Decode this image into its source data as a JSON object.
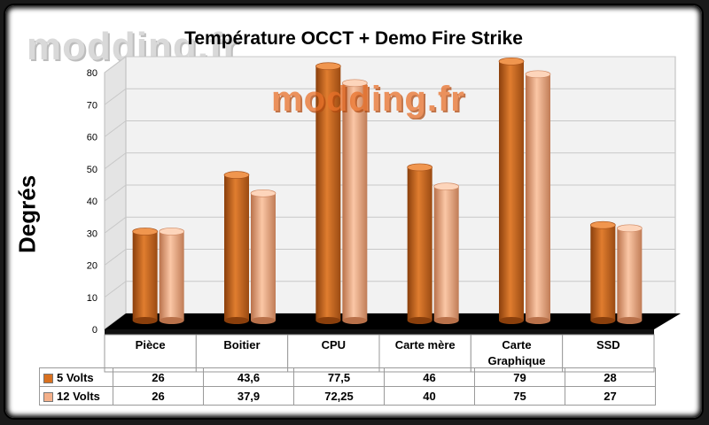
{
  "chart_data": {
    "type": "bar",
    "title": "Température OCCT + Demo Fire Strike",
    "ylabel": "Degrés",
    "xlabel": "",
    "categories": [
      "Pièce",
      "Boitier",
      "CPU",
      "Carte mère",
      "Carte\nGraphique",
      "SSD"
    ],
    "series": [
      {
        "name": "5 Volts",
        "color": "#d9701f",
        "values": [
          26,
          43.6,
          77.5,
          46,
          79,
          28
        ],
        "labels": [
          "26",
          "43,6",
          "77,5",
          "46",
          "79",
          "28"
        ]
      },
      {
        "name": "12 Volts",
        "color": "#f4b08a",
        "values": [
          26,
          37.9,
          72.25,
          40,
          75,
          27
        ],
        "labels": [
          "26",
          "37,9",
          "72,25",
          "40",
          "75",
          "27"
        ]
      }
    ],
    "ylim": [
      0,
      80
    ],
    "yticks": [
      0,
      10,
      20,
      30,
      40,
      50,
      60,
      70,
      80
    ],
    "grid": true,
    "legend": "data-table"
  },
  "watermarks": [
    "modding.fr",
    "modding.fr"
  ]
}
